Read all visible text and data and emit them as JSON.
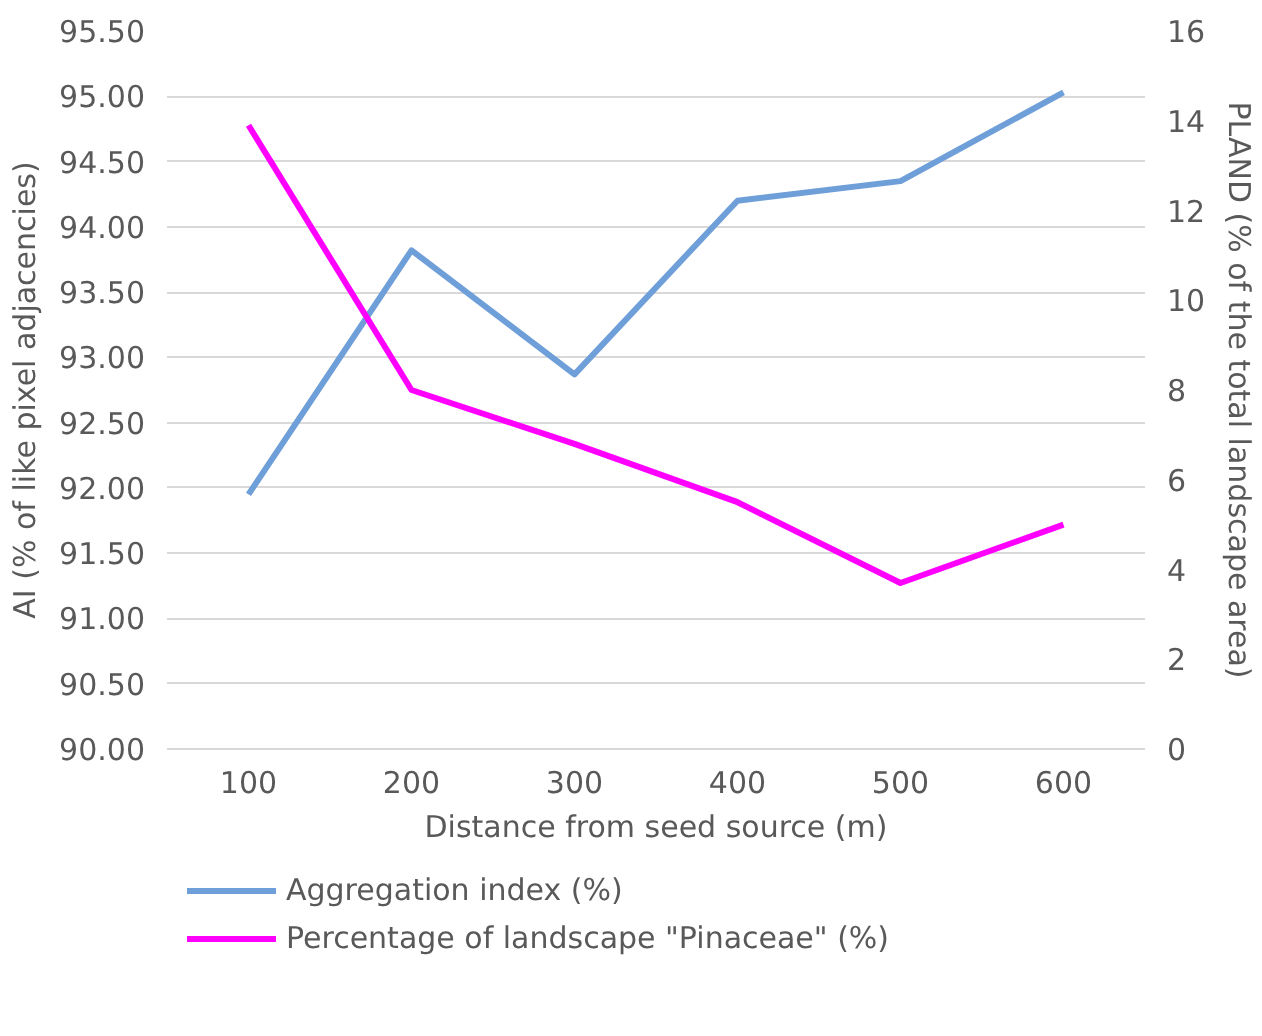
{
  "chart_data": {
    "type": "line",
    "xlabel": "Distance from seed source (m)",
    "ylabel": "AI (% of like pixel adjacencies)",
    "y2label": "PLAND (% of the total landscape area)",
    "categories": [
      "100",
      "200",
      "300",
      "400",
      "500",
      "600"
    ],
    "series": [
      {
        "name": "Aggregation index (%)",
        "color": "#6f9fd8",
        "values": [
          91.95,
          93.82,
          92.87,
          94.2,
          94.35,
          95.03
        ]
      },
      {
        "name": "Percentage of landscape \"Pinaceae\" (%)",
        "color": "#ff00ff",
        "axis": "y2",
        "values": [
          13.9,
          8.0,
          6.8,
          5.5,
          3.7,
          5.0
        ]
      }
    ],
    "ylim": [
      90,
      95.5
    ],
    "yticks": [
      {
        "value": 90,
        "label": "90.00"
      },
      {
        "value": 90.5,
        "label": "90.50"
      },
      {
        "value": 91,
        "label": "91.00"
      },
      {
        "value": 91.5,
        "label": "91.50"
      },
      {
        "value": 92,
        "label": "92.00"
      },
      {
        "value": 92.5,
        "label": "92.50"
      },
      {
        "value": 93,
        "label": "93.00"
      },
      {
        "value": 93.5,
        "label": "93.50"
      },
      {
        "value": 94,
        "label": "94.00"
      },
      {
        "value": 94.5,
        "label": "94.50"
      },
      {
        "value": 95,
        "label": "95.00"
      },
      {
        "value": 95.5,
        "label": "95.50"
      }
    ],
    "y2lim": [
      0,
      16
    ],
    "y2ticks": [
      0,
      2,
      4,
      6,
      8,
      10,
      12,
      14,
      16
    ],
    "grid": "y",
    "legend": "bottom",
    "line_style": "solid",
    "marker": "none"
  }
}
